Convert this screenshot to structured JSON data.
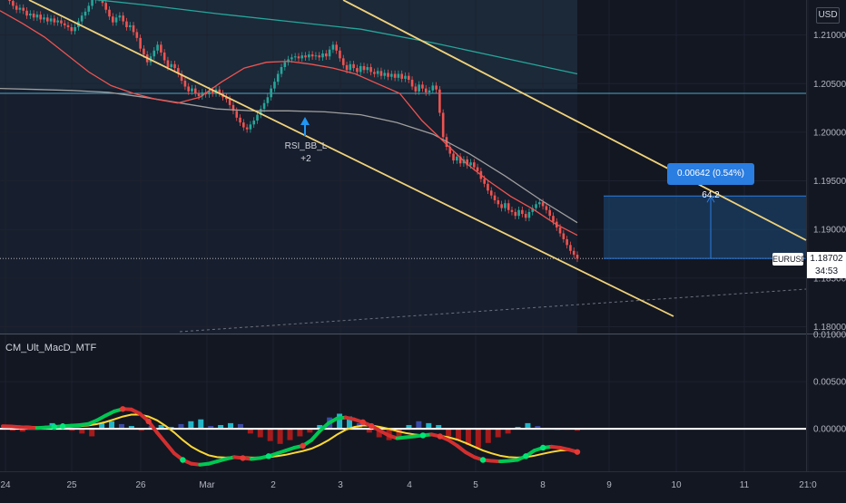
{
  "chart_data": [
    {
      "type": "candlestick",
      "symbol": "EURUSD",
      "currency": "USD",
      "last_price": "1.18702",
      "countdown": "34:53",
      "y_ticks": [
        "1.21000",
        "1.20500",
        "1.20000",
        "1.19500",
        "1.19000",
        "1.18500",
        "1.18000"
      ],
      "ylim": [
        1.1793,
        1.2136
      ],
      "x_ticks": [
        "24",
        "25",
        "26",
        "Mar",
        "2",
        "3",
        "4",
        "5",
        "8",
        "9",
        "10",
        "11",
        "21:0"
      ],
      "closes": [
        1.2145,
        1.214,
        1.2135,
        1.213,
        1.2126,
        1.2128,
        1.2125,
        1.212,
        1.2122,
        1.2118,
        1.2121,
        1.2116,
        1.2118,
        1.2114,
        1.2117,
        1.2113,
        1.2115,
        1.2112,
        1.211,
        1.2108,
        1.2104,
        1.2108,
        1.2114,
        1.212,
        1.2124,
        1.213,
        1.2136,
        1.214,
        1.2138,
        1.2133,
        1.2126,
        1.2119,
        1.2113,
        1.2118,
        1.212,
        1.2114,
        1.2108,
        1.211,
        1.2103,
        1.2097,
        1.2086,
        1.208,
        1.2072,
        1.2078,
        1.2084,
        1.209,
        1.2082,
        1.2074,
        1.2067,
        1.207,
        1.2066,
        1.206,
        1.2053,
        1.2047,
        1.2042,
        1.2045,
        1.204,
        1.2037,
        1.2041,
        1.2039,
        1.2043,
        1.204,
        1.2044,
        1.204,
        1.2036,
        1.2034,
        1.2028,
        1.2022,
        1.2015,
        1.201,
        1.2005,
        1.2003,
        1.2008,
        1.2012,
        1.2018,
        1.2024,
        1.203,
        1.2036,
        1.2045,
        1.2052,
        1.206,
        1.2067,
        1.2072,
        1.2075,
        1.2077,
        1.2078,
        1.2076,
        1.2079,
        1.2077,
        1.208,
        1.2078,
        1.2079,
        1.2077,
        1.2081,
        1.2078,
        1.2085,
        1.209,
        1.2084,
        1.2076,
        1.2069,
        1.2064,
        1.207,
        1.2066,
        1.2062,
        1.2068,
        1.2064,
        1.2067,
        1.2062,
        1.206,
        1.2063,
        1.2058,
        1.2061,
        1.2057,
        1.206,
        1.2056,
        1.206,
        1.2055,
        1.2058,
        1.2054,
        1.2047,
        1.2042,
        1.2049,
        1.2045,
        1.2041,
        1.2043,
        1.2048,
        1.2044,
        1.202,
        1.1995,
        1.1985,
        1.1978,
        1.1971,
        1.1975,
        1.1968,
        1.1972,
        1.1966,
        1.1969,
        1.1964,
        1.196,
        1.1952,
        1.1947,
        1.194,
        1.1935,
        1.193,
        1.1926,
        1.1922,
        1.1927,
        1.192,
        1.1918,
        1.1914,
        1.192,
        1.1916,
        1.1912,
        1.1918,
        1.1922,
        1.1926,
        1.1928,
        1.1924,
        1.192,
        1.1914,
        1.1908,
        1.1902,
        1.1896,
        1.189,
        1.1884,
        1.1878,
        1.1874,
        1.187
      ],
      "emas": [
        {
          "color": "#26a69a",
          "values": [
            1.2145,
            1.2139,
            1.2131,
            1.2122,
            1.2114,
            1.2106,
            1.2092,
            1.2076,
            1.206
          ]
        },
        {
          "color": "#9e9e9e",
          "values": [
            1.2045,
            1.2044,
            1.2043,
            1.2041,
            1.2036,
            1.203,
            1.2024,
            1.2022,
            1.2022,
            1.2021,
            1.2018,
            1.201,
            1.1998,
            1.1978,
            1.1955,
            1.193,
            1.1907
          ]
        },
        {
          "color": "#ef5350",
          "values": [
            1.2125,
            1.2112,
            1.2098,
            1.208,
            1.2062,
            1.2048,
            1.204,
            1.2034,
            1.203,
            1.2036,
            1.2052,
            1.2066,
            1.2072,
            1.2073,
            1.207,
            1.2066,
            1.206,
            1.205,
            1.204,
            1.2012,
            1.199,
            1.1968,
            1.195,
            1.1934,
            1.1921,
            1.1906,
            1.1894
          ]
        }
      ],
      "channel": {
        "color": "#f0d27a"
      },
      "horizontal_level": 1.204,
      "signal_label": "RSI_BB_L\n+2",
      "measure": {
        "text": "0.00642 (0.54%) 64.2",
        "from": 1.18702,
        "to": 1.19344
      }
    },
    {
      "type": "macd",
      "title": "CM_Ult_MacD_MTF",
      "y_ticks": [
        "0.01000",
        "0.00500",
        "0.00000"
      ],
      "ylim": [
        -0.0045,
        0.01
      ],
      "macd": [
        0.00028,
        0.00025,
        0.00018,
        0.00012,
        8e-05,
        0.00014,
        0.0002,
        0.00028,
        0.00034,
        0.0004,
        0.00052,
        0.0009,
        0.0014,
        0.00185,
        0.0021,
        0.00205,
        0.0016,
        0.0008,
        -0.0004,
        -0.0015,
        -0.0026,
        -0.0033,
        -0.0037,
        -0.0038,
        -0.0037,
        -0.00345,
        -0.0032,
        -0.003,
        -0.0031,
        -0.0032,
        -0.0031,
        -0.0029,
        -0.0026,
        -0.0023,
        -0.002,
        -0.0018,
        -0.0012,
        -0.0002,
        0.0006,
        0.0011,
        0.0012,
        0.001,
        0.0007,
        0.0003,
        -0.0002,
        -0.0007,
        -0.001,
        -0.0009,
        -0.0008,
        -0.0007,
        -0.0006,
        -0.0008,
        -0.0012,
        -0.0018,
        -0.0025,
        -0.003,
        -0.0033,
        -0.0034,
        -0.00345,
        -0.0034,
        -0.0033,
        -0.0029,
        -0.0023,
        -0.002,
        -0.0019,
        -0.002,
        -0.0022,
        -0.00245
      ],
      "signal": [
        0.0003,
        0.00028,
        0.00025,
        0.00022,
        0.00018,
        0.00016,
        0.00016,
        0.00018,
        0.00022,
        0.00028,
        0.00036,
        0.0005,
        0.00072,
        0.001,
        0.0013,
        0.0015,
        0.0015,
        0.0013,
        0.0009,
        0.0003,
        -0.0004,
        -0.0012,
        -0.0019,
        -0.0024,
        -0.0028,
        -0.003,
        -0.00305,
        -0.003,
        -0.003,
        -0.00305,
        -0.00305,
        -0.003,
        -0.0029,
        -0.00275,
        -0.00255,
        -0.00235,
        -0.0021,
        -0.0017,
        -0.0012,
        -0.0006,
        -0.0001,
        0.0002,
        0.00035,
        0.00035,
        0.0002,
        0.0,
        -0.00025,
        -0.00045,
        -0.0006,
        -0.0007,
        -0.0007,
        -0.00075,
        -0.0009,
        -0.00115,
        -0.0015,
        -0.0019,
        -0.0023,
        -0.0026,
        -0.00285,
        -0.003,
        -0.00305,
        -0.003,
        -0.00285,
        -0.00265,
        -0.00245,
        -0.0023,
        -0.00225,
        -0.0023
      ],
      "histogram": [
        -0.0001,
        -0.0002,
        -0.0003,
        0.0001,
        0.0003,
        0.0006,
        0.0004,
        -0.0002,
        -0.0005,
        -0.0008,
        0.0006,
        0.0008,
        0.0005,
        0.0003,
        -0.0002,
        0.0003,
        0.0004,
        0.0002,
        0.0005,
        0.0008,
        0.001,
        0.0003,
        0.0004,
        0.0006,
        0.0005,
        -0.0005,
        -0.0009,
        -0.0013,
        -0.0016,
        -0.0012,
        -0.0008,
        -0.0004,
        0.0004,
        0.0012,
        0.0016,
        0.0013,
        0.0006,
        -0.0004,
        -0.0009,
        -0.0012,
        -0.001,
        0.0004,
        0.0008,
        0.0006,
        0.0004,
        -0.0008,
        -0.0012,
        -0.0017,
        -0.002,
        -0.0015,
        -0.0009,
        -0.0005,
        0.0002,
        0.0006,
        0.0003,
        0.0001,
        0.0,
        -0.0001,
        -0.0002
      ],
      "colors": {
        "macd_up": "#00c853",
        "macd_down": "#d32f2f",
        "signal": "#fdd835",
        "cross": "#00e676",
        "hist_up": "#26c6da",
        "hist_down": "#b71c1c",
        "hist_other": "#3f51b5",
        "zero": "#ffffff"
      }
    }
  ],
  "toolbar": {
    "currency": "USD"
  }
}
